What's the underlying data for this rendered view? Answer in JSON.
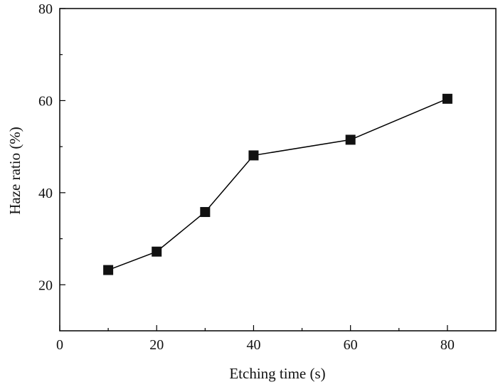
{
  "chart_data": {
    "type": "line",
    "title": "",
    "xlabel": "Etching time (s)",
    "ylabel": "Haze ratio (%)",
    "xlim": [
      0,
      90
    ],
    "ylim": [
      10,
      80
    ],
    "x_ticks": [
      0,
      20,
      40,
      60,
      80
    ],
    "y_ticks": [
      20,
      40,
      60,
      80
    ],
    "x_minor_ticks": [
      10,
      30,
      50,
      70
    ],
    "y_minor_ticks": [
      30,
      50,
      70
    ],
    "grid": false,
    "legend": "none",
    "series": [
      {
        "marker": "square",
        "color": "#111111",
        "x": [
          10,
          20,
          30,
          40,
          60,
          80
        ],
        "y": [
          23.2,
          27.2,
          35.8,
          48.1,
          51.5,
          60.4
        ]
      }
    ]
  }
}
